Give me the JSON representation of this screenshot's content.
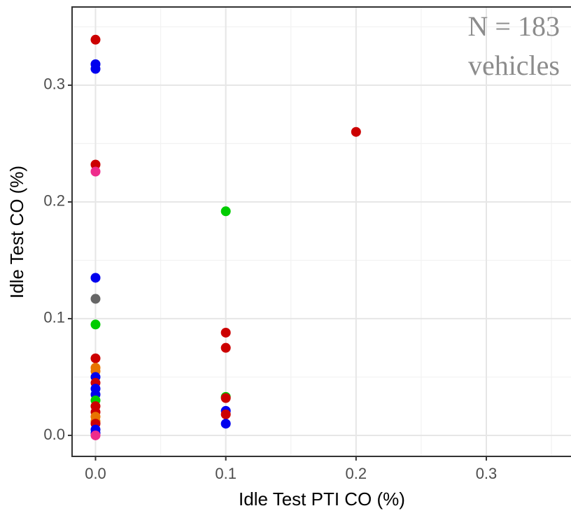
{
  "chart_data": {
    "type": "scatter",
    "x_label": "Idle Test PTI CO (%)",
    "y_label": "Idle Test CO (%)",
    "annotations": [
      "N = 183",
      "vehicles"
    ],
    "x": [
      0,
      0,
      0,
      0,
      0,
      0,
      0,
      0,
      0,
      0,
      0,
      0,
      0,
      0,
      0,
      0,
      0,
      0,
      0,
      0,
      0,
      0,
      0,
      0,
      0.1,
      0.1,
      0.1,
      0.1,
      0.1,
      0.1,
      0.1,
      0.1,
      0.2
    ],
    "values": [
      0.339,
      0.318,
      0.314,
      0.232,
      0.226,
      0.135,
      0.117,
      0.095,
      0.066,
      0.058,
      0.055,
      0.05,
      0.045,
      0.04,
      0.035,
      0.03,
      0.025,
      0.02,
      0.016,
      0.012,
      0.01,
      0.005,
      0.002,
      0.0,
      0.192,
      0.088,
      0.075,
      0.033,
      0.032,
      0.021,
      0.018,
      0.01,
      0.26
    ],
    "colors": [
      "#cc0000",
      "#0000ee",
      "#0000ee",
      "#cc0000",
      "#ee2c8c",
      "#0000ee",
      "#666666",
      "#00cc00",
      "#cc0000",
      "#e87500",
      "#e87500",
      "#0000ee",
      "#cc0000",
      "#0000ee",
      "#0000ee",
      "#00cc00",
      "#cc0000",
      "#cc0000",
      "#e87500",
      "#e87500",
      "#cc0000",
      "#0000ee",
      "#0000ee",
      "#ee2c8c",
      "#00cc00",
      "#cc0000",
      "#cc0000",
      "#00cc00",
      "#cc0000",
      "#0000ee",
      "#cc0000",
      "#0000ee",
      "#cc0000"
    ],
    "xlim": [
      -0.018,
      0.365
    ],
    "ylim": [
      -0.018,
      0.367
    ],
    "xticks": [
      {
        "value": 0,
        "label": "0.0"
      },
      0.1,
      0.2,
      0.3
    ],
    "yticks": [
      {
        "value": 0,
        "label": "0.0"
      },
      0.1,
      0.2,
      0.3
    ],
    "grid": true
  }
}
